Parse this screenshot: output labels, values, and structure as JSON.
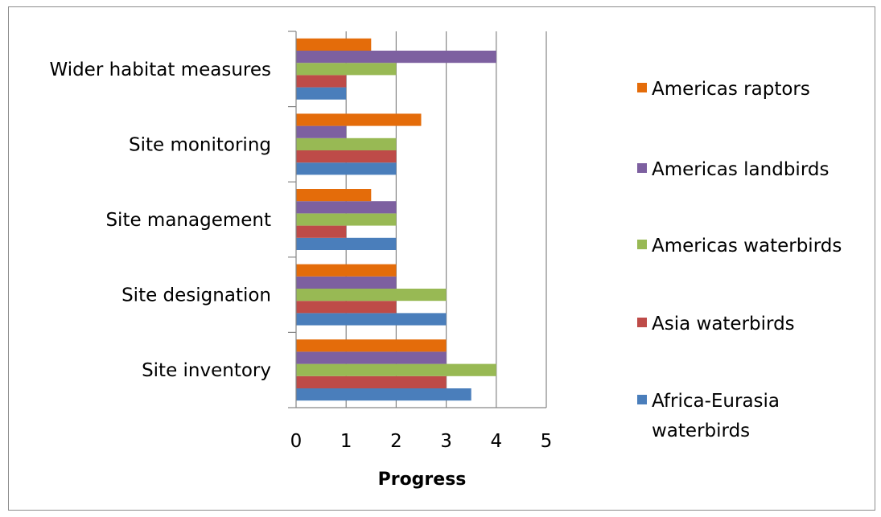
{
  "chart_data": {
    "type": "bar",
    "orientation": "horizontal",
    "categories": [
      "Site inventory",
      "Site designation",
      "Site management",
      "Site monitoring",
      "Wider habitat measures"
    ],
    "series": [
      {
        "name": "Africa-Eurasia waterbirds",
        "color": "#4a7ebb",
        "values": [
          3.5,
          3,
          2,
          2,
          1
        ]
      },
      {
        "name": "Asia waterbirds",
        "color": "#be4b48",
        "values": [
          3,
          2,
          1,
          2,
          1
        ]
      },
      {
        "name": "Americas waterbirds",
        "color": "#98b954",
        "values": [
          4,
          3,
          2,
          2,
          2
        ]
      },
      {
        "name": "Americas landbirds",
        "color": "#7d60a0",
        "values": [
          3,
          2,
          2,
          1,
          4
        ]
      },
      {
        "name": "Americas raptors",
        "color": "#e46c0a",
        "values": [
          3,
          2,
          1.5,
          2.5,
          1.5
        ]
      }
    ],
    "xlabel": "Progress",
    "ylabel": "",
    "xlim": [
      0,
      5
    ],
    "xticks": [
      0,
      1,
      2,
      3,
      4,
      5
    ],
    "grid": true,
    "legend": "right",
    "legend_order": [
      "Americas raptors",
      "Americas landbirds",
      "Americas waterbirds",
      "Asia waterbirds",
      "Africa-Eurasia waterbirds"
    ]
  }
}
